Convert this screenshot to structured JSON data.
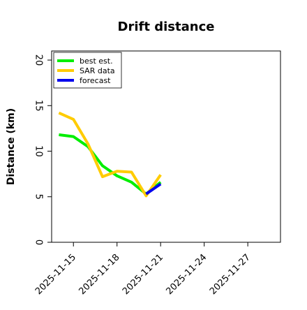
{
  "chart_data": {
    "type": "line",
    "title": "Drift distance",
    "xlabel": "",
    "ylabel": "Distance (km)",
    "ylim": [
      0,
      21
    ],
    "xlim": [
      "2025-11-13T12:00",
      "2025-11-29T06:00"
    ],
    "y_ticks": [
      "0",
      "5",
      "10",
      "15",
      "20"
    ],
    "x_ticks": [
      "2025-11-15",
      "2025-11-18",
      "2025-11-21",
      "2025-11-24",
      "2025-11-27"
    ],
    "grid": false,
    "legend_position": "top-left",
    "series": [
      {
        "name": "best est.",
        "color": "#00ee00",
        "points": [
          {
            "x": "2025-11-14T00:00",
            "y": 11.8
          },
          {
            "x": "2025-11-15T00:00",
            "y": 11.6
          },
          {
            "x": "2025-11-16T00:00",
            "y": 10.5
          },
          {
            "x": "2025-11-17T00:00",
            "y": 8.4
          },
          {
            "x": "2025-11-18T00:00",
            "y": 7.3
          },
          {
            "x": "2025-11-19T00:00",
            "y": 6.6
          },
          {
            "x": "2025-11-20T00:00",
            "y": 5.3
          },
          {
            "x": "2025-11-21T00:00",
            "y": 6.6
          }
        ]
      },
      {
        "name": "SAR data",
        "color": "#ffcc00",
        "points": [
          {
            "x": "2025-11-14T00:00",
            "y": 14.2
          },
          {
            "x": "2025-11-15T00:00",
            "y": 13.5
          },
          {
            "x": "2025-11-16T00:00",
            "y": 10.8
          },
          {
            "x": "2025-11-17T00:00",
            "y": 7.2
          },
          {
            "x": "2025-11-18T00:00",
            "y": 7.8
          },
          {
            "x": "2025-11-19T00:00",
            "y": 7.7
          },
          {
            "x": "2025-11-20T00:00",
            "y": 5.1
          },
          {
            "x": "2025-11-21T00:00",
            "y": 7.4
          }
        ]
      },
      {
        "name": "forecast",
        "color": "#0000ee",
        "points": [
          {
            "x": "2025-11-20T00:00",
            "y": 5.3
          },
          {
            "x": "2025-11-21T00:00",
            "y": 6.4
          }
        ]
      }
    ]
  }
}
